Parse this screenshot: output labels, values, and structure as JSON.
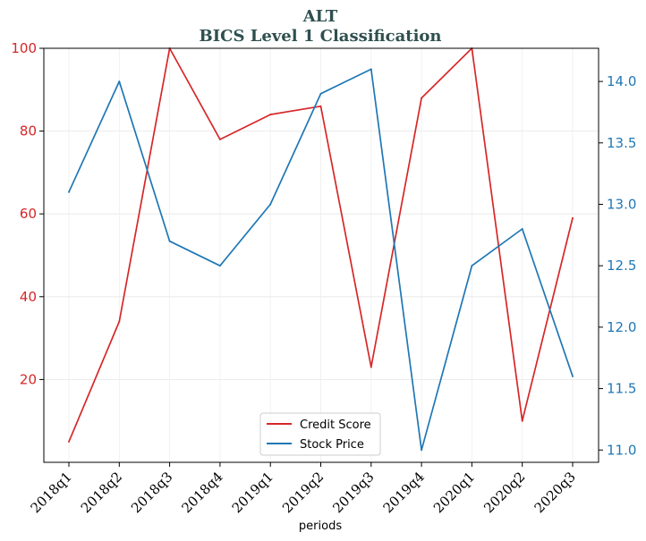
{
  "chart_data": {
    "type": "line",
    "title": "ALT",
    "subtitle": "BICS Level 1 Classification",
    "xlabel": "periods",
    "categories": [
      "2018q1",
      "2018q2",
      "2018q3",
      "2018q4",
      "2019q1",
      "2019q2",
      "2019q3",
      "2019q4",
      "2020q1",
      "2020q2",
      "2020q3"
    ],
    "series": [
      {
        "name": "Credit Score",
        "axis": "left",
        "color": "#d62728",
        "values": [
          5,
          34,
          100,
          78,
          84,
          86,
          23,
          88,
          100,
          10,
          59
        ]
      },
      {
        "name": "Stock Price",
        "axis": "right",
        "color": "#1f77b4",
        "values": [
          13.1,
          14.0,
          12.7,
          12.5,
          13.0,
          13.9,
          14.1,
          11.0,
          12.5,
          12.8,
          11.6
        ]
      }
    ],
    "y_left": {
      "ylim": [
        0,
        100
      ],
      "ticks": [
        "20",
        "40",
        "60",
        "80",
        "100"
      ],
      "color": "#d62728"
    },
    "y_right": {
      "ylim": [
        10.9,
        14.27
      ],
      "ticks": [
        "11.0",
        "11.5",
        "12.0",
        "12.5",
        "13.0",
        "13.5",
        "14.0"
      ],
      "color": "#1f77b4"
    },
    "grid": true,
    "legend_position": "bottom-center"
  }
}
